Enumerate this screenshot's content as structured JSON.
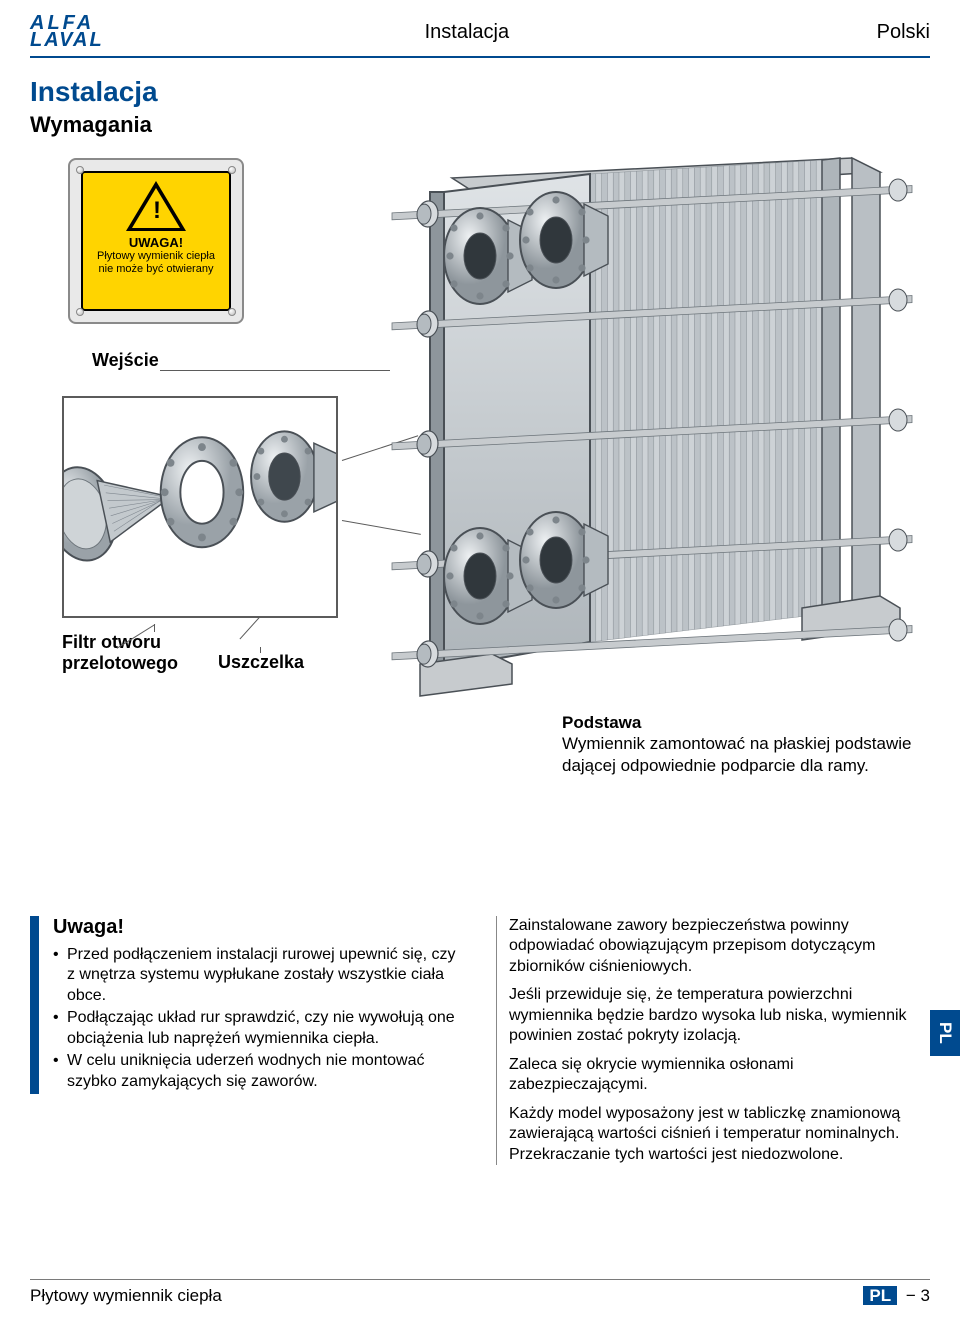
{
  "header": {
    "logo_line1": "ALFA",
    "logo_line2": "LAVAL",
    "center": "Instalacja",
    "right": "Polski"
  },
  "titles": {
    "h1": "Instalacja",
    "h2": "Wymagania"
  },
  "diagram": {
    "warning_title": "UWAGA!",
    "warning_text": "Płytowy wymienik ciepła nie może być otwierany",
    "label_wejscie": "Wejście",
    "label_filtr": "Filtr otworu przelotowego",
    "label_uszczelka": "Uszczelka",
    "base_title": "Podstawa",
    "base_text": "Wymiennik zamontować na płaskiej podstawie dającej odpowiednie podparcie dla ramy.",
    "colors": {
      "metal_light": "#d7dbde",
      "metal_mid": "#b9bfc4",
      "metal_dark": "#8e969c",
      "outline": "#4a5056",
      "rod": "#c7cbce",
      "flange": "#b4bbc0",
      "warn_yellow": "#ffd400",
      "frame": "#8a8a8a",
      "line": "#5b5b5b"
    }
  },
  "uwaga": {
    "title": "Uwaga!",
    "items": [
      "Przed podłączeniem instalacji rurowej upewnić się, czy z wnętrza systemu wypłukane zostały wszystkie ciała obce.",
      "Podłączając układ rur sprawdzić, czy nie wywołują one obciążenia lub naprężeń wymiennika ciepła.",
      "W celu uniknięcia uderzeń wodnych nie montować szybko zamykających się zaworów."
    ]
  },
  "right_col": {
    "paras": [
      "Zainstalowane zawory bezpieczeństwa powinny odpowiadać obowiązującym przepisom dotyczącym zbiorników ciśnieniowych.",
      "Jeśli przewiduje się, że temperatura powierzchni wymiennika będzie bardzo wysoka lub niska, wymiennik powinien zostać pokryty izolacją.",
      "Zaleca się okrycie wymiennika osłonami zabezpieczającymi.",
      "Każdy model wyposażony jest w tabliczkę znamionową zawierającą wartości ciśnień i temperatur nominalnych. Przekraczanie tych wartości jest niedozwolone."
    ]
  },
  "side_tab": "PL",
  "footer": {
    "left": "Płytowy wymiennik ciepła",
    "badge": "PL",
    "dash": " − ",
    "num": "3"
  },
  "svg": {
    "plate_count": 40,
    "rod_rows": [
      60,
      170,
      290,
      410,
      500
    ]
  }
}
